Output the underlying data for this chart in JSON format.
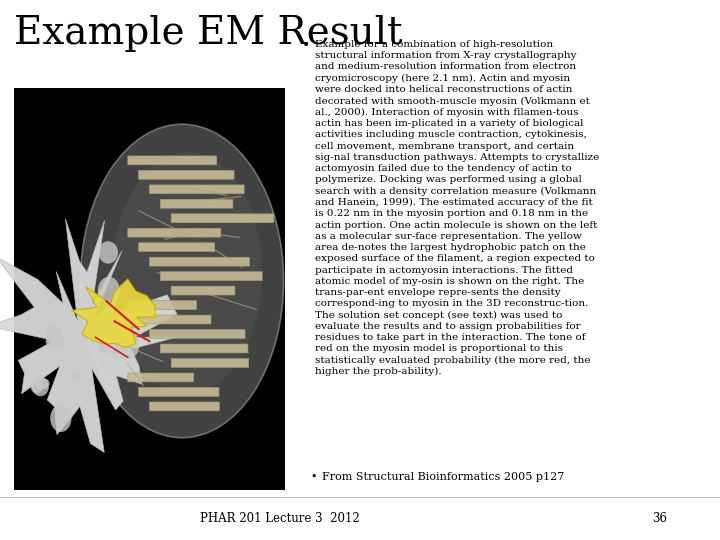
{
  "background_color": "#ffffff",
  "title": "Example EM Result",
  "title_fontsize": 28,
  "title_color": "#000000",
  "bullet1_symbol": "•",
  "bullet1_fontsize": 10,
  "body_text": "Example for a combination of high-resolution\nstructural information from X-ray crystallography\nand medium-resolution information from electron\ncryomicroscopy (here 2.1 nm). Actin and myosin\nwere docked into helical reconstructions of actin\ndecorated with smooth-muscle myosin (Volkmann et\nal., 2000). Interaction of myosin with filamen-tous\nactin has been im-plicated in a variety of biological\nactivities including muscle contraction, cytokinesis,\ncell movement, membrane transport, and certain\nsig-nal transduction pathways. Attempts to crystallize\nactomyosin failed due to the tendency of actin to\npolymerize. Docking was performed using a global\nsearch with a density correlation measure (Volkmann\nand Hanein, 1999). The estimated accuracy of the fit\nis 0.22 nm in the myosin portion and 0.18 nm in the\nactin portion. One actin molecule is shown on the left\nas a molecular sur-face representation. The yellow\narea de-notes the largest hydrophobic patch on the\nexposed surface of the filament, a region expected to\nparticipate in actomyosin interactions. The fitted\natomic model of my-osin is shown on the right. The\ntrans-par-ent envelope repre-sents the density\ncorrespond-ing to myosin in the 3D reconstruc-tion.\nThe solution set concept (see text) was used to\nevaluate the results and to assign probabilities for\nresidues to take part in the interaction. The tone of\nred on the myosin model is proportional to this\nstatistically evaluated probability (the more red, the\nhigher the prob-ability).",
  "body_fontsize": 7.5,
  "bullet2_text": "From Structural Bioinformatics 2005 p127",
  "bullet2_fontsize": 8.0,
  "footer_text": "PHAR 201 Lecture 3  2012",
  "footer_fontsize": 8.5,
  "page_num": "36",
  "page_fontsize": 8.5,
  "image_bg": "#000000",
  "em_gray_envelope": "#888888",
  "em_white_blob": "#cccccc",
  "em_ribbon": "#d4c8a0",
  "em_yellow": "#e8d840",
  "em_red": "#cc2222"
}
